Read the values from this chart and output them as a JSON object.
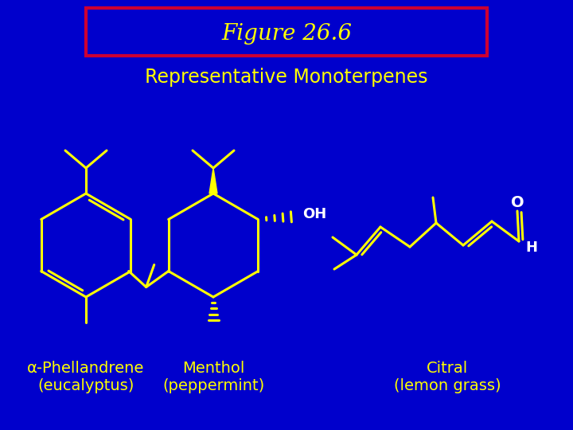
{
  "background_color": "#0000CC",
  "title_text": "Figure 26.6",
  "title_box_color": "#CC0033",
  "title_text_color": "#FFFF00",
  "subtitle_text": "Representative Monoterpenes",
  "subtitle_color": "#FFFF00",
  "label1_line1": "α-Phellandrene",
  "label1_line2": "(eucalyptus)",
  "label2_line1": "Menthol",
  "label2_line2": "(peppermint)",
  "label3_line1": "Citral",
  "label3_line2": "(lemon grass)",
  "label_color": "#FFFF00",
  "structure_color": "#FFFF00",
  "oh_color": "#FFFFFF",
  "o_color": "#FFFFFF",
  "h_color": "#FFFFFF",
  "lw": 2.2
}
